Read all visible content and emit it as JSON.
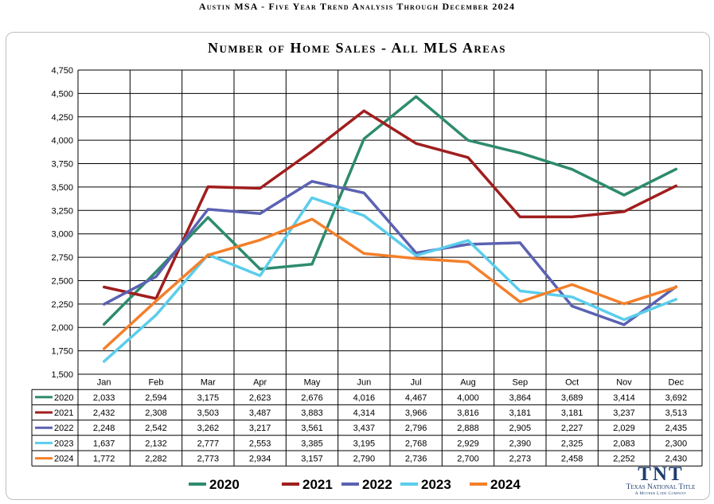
{
  "header": {
    "title": "Austin MSA - Five Year Trend Analysis Through December 2024"
  },
  "logo": {
    "mark": "TNT",
    "name": "Texas National Title",
    "tagline": "A Mother Lode Company"
  },
  "chart_data": {
    "type": "line",
    "title": "Number of Home Sales - All MLS Areas",
    "xlabel": "",
    "ylabel": "",
    "ylim": [
      1500,
      4750
    ],
    "yticks": [
      1500,
      1750,
      2000,
      2250,
      2500,
      2750,
      3000,
      3250,
      3500,
      3750,
      4000,
      4250,
      4500,
      4750
    ],
    "categories": [
      "Jan",
      "Feb",
      "Mar",
      "Apr",
      "May",
      "Jun",
      "Jul",
      "Aug",
      "Sep",
      "Oct",
      "Nov",
      "Dec"
    ],
    "grid": true,
    "legend_position": "bottom",
    "data_table": true,
    "series": [
      {
        "name": "2020",
        "color": "#2e8b6e",
        "values": [
          2033,
          2594,
          3175,
          2623,
          2676,
          4016,
          4467,
          4000,
          3864,
          3689,
          3414,
          3692
        ]
      },
      {
        "name": "2021",
        "color": "#a01e1e",
        "values": [
          2432,
          2308,
          3503,
          3487,
          3883,
          4314,
          3966,
          3816,
          3181,
          3181,
          3237,
          3513
        ]
      },
      {
        "name": "2022",
        "color": "#5b62b2",
        "values": [
          2248,
          2542,
          3262,
          3217,
          3561,
          3437,
          2796,
          2888,
          2905,
          2227,
          2029,
          2435
        ]
      },
      {
        "name": "2023",
        "color": "#5bcdec",
        "values": [
          1637,
          2132,
          2777,
          2553,
          3385,
          3195,
          2768,
          2929,
          2390,
          2325,
          2083,
          2300
        ]
      },
      {
        "name": "2024",
        "color": "#f47f2a",
        "values": [
          1772,
          2282,
          2773,
          2934,
          3157,
          2790,
          2736,
          2700,
          2273,
          2458,
          2252,
          2430
        ]
      }
    ]
  }
}
